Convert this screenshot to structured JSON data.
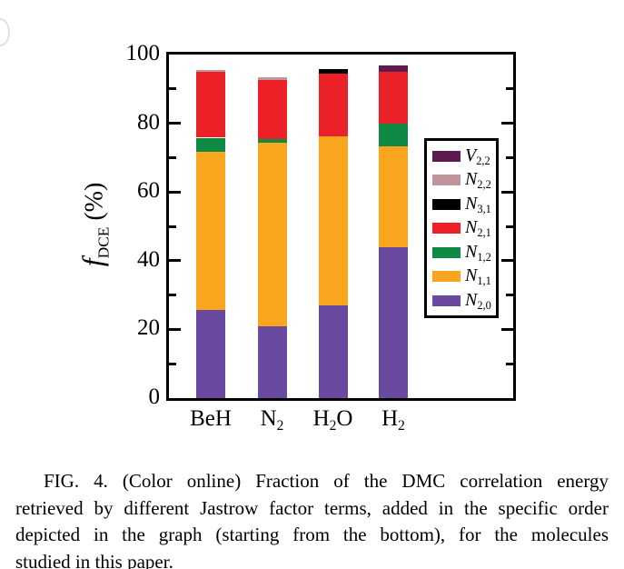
{
  "figure": {
    "caption": {
      "lines": [
        "FIG. 4. (Color online) Fraction of the DMC correlation energy",
        "retrieved by different Jastrow factor terms, added in the specific order",
        "depicted in the graph (starting from the bottom), for the molecules",
        "studied in this paper."
      ]
    }
  },
  "chart_data": {
    "type": "bar",
    "stacked": true,
    "title": "",
    "xlabel": "",
    "ylabel_text": "f_DCE (%)",
    "ylabel": {
      "italic": "f",
      "sub": "DCE",
      "rest": " (%)"
    },
    "ylim": [
      0,
      100
    ],
    "ytick_major": [
      0,
      20,
      40,
      60,
      80,
      100
    ],
    "ytick_minor": [
      10,
      30,
      50,
      70,
      90
    ],
    "grid": false,
    "categories_text": [
      "BeH",
      "N2",
      "H2O",
      "H2"
    ],
    "categories": [
      {
        "parts": [
          {
            "t": "BeH"
          }
        ]
      },
      {
        "parts": [
          {
            "t": "N"
          },
          {
            "sub": "2"
          }
        ]
      },
      {
        "parts": [
          {
            "t": "H"
          },
          {
            "sub": "2"
          },
          {
            "t": "O"
          }
        ]
      },
      {
        "parts": [
          {
            "t": "H"
          },
          {
            "sub": "2"
          }
        ]
      }
    ],
    "series": [
      {
        "name": "N_2,0",
        "letter": "N",
        "sub": "2,0",
        "color": "#6A4AA0",
        "values": [
          25.6,
          20.9,
          26.9,
          43.9
        ]
      },
      {
        "name": "N_1,1",
        "letter": "N",
        "sub": "1,1",
        "color": "#F9A51D",
        "values": [
          46.1,
          53.4,
          49.2,
          29.5
        ]
      },
      {
        "name": "N_1,2",
        "letter": "N",
        "sub": "1,2",
        "color": "#0E8A45",
        "values": [
          4.1,
          1.2,
          0,
          6.6
        ]
      },
      {
        "name": "N_2,1",
        "letter": "N",
        "sub": "2,1",
        "color": "#EC2127",
        "values": [
          19.2,
          17.0,
          18.3,
          14.9
        ]
      },
      {
        "name": "N_3,1",
        "letter": "N",
        "sub": "3,1",
        "color": "#000000",
        "values": [
          0,
          0,
          1.4,
          0
        ]
      },
      {
        "name": "N_2,2",
        "letter": "N",
        "sub": "2,2",
        "color": "#C0949B",
        "values": [
          0.5,
          0.9,
          0,
          0
        ]
      },
      {
        "name": "V_2,2",
        "letter": "V",
        "sub": "2,2",
        "color": "#5C1A4F",
        "values": [
          0,
          0,
          0,
          1.9
        ]
      }
    ],
    "legend": {
      "position": "right-inside",
      "order_top_to_bottom": [
        "V_2,2",
        "N_2,2",
        "N_3,1",
        "N_2,1",
        "N_1,2",
        "N_1,1",
        "N_2,0"
      ]
    }
  }
}
